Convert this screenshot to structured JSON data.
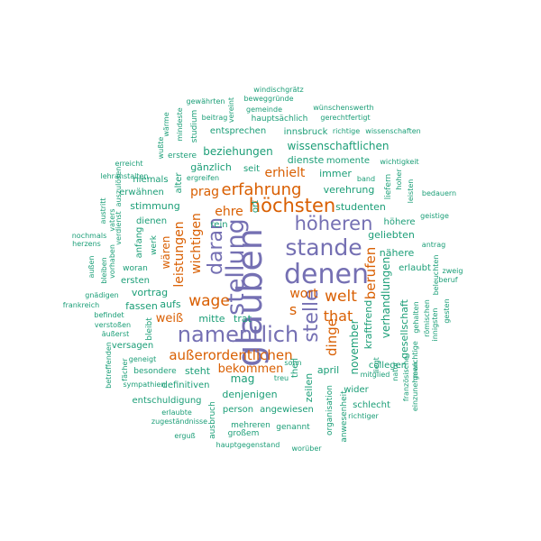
{
  "colors": {
    "purple": "#7570b3",
    "orange": "#d95f02",
    "teal": "#1b9e77"
  },
  "words": [
    {
      "text": "glauben",
      "color": "purple"
    },
    {
      "text": "denen",
      "color": "purple"
    },
    {
      "text": "namentlich",
      "color": "purple"
    },
    {
      "text": "stellung",
      "color": "purple"
    },
    {
      "text": "stande",
      "color": "purple"
    },
    {
      "text": "daran",
      "color": "purple"
    },
    {
      "text": "höheren",
      "color": "purple"
    },
    {
      "text": "stelle",
      "color": "purple"
    },
    {
      "text": "höchsten",
      "color": "orange"
    },
    {
      "text": "erfahrung",
      "color": "orange"
    },
    {
      "text": "welt",
      "color": "orange"
    },
    {
      "text": "wage",
      "color": "orange"
    },
    {
      "text": "that",
      "color": "orange"
    },
    {
      "text": "außerordentlichen",
      "color": "orange"
    },
    {
      "text": "leistungen",
      "color": "orange"
    },
    {
      "text": "wichtigen",
      "color": "orange"
    },
    {
      "text": "berufen",
      "color": "orange"
    },
    {
      "text": "dinge",
      "color": "orange"
    },
    {
      "text": "erhielt",
      "color": "orange"
    },
    {
      "text": "wort",
      "color": "orange"
    },
    {
      "text": "ehre",
      "color": "orange"
    },
    {
      "text": "prag",
      "color": "orange"
    },
    {
      "text": "weiß",
      "color": "orange"
    },
    {
      "text": "wären",
      "color": "orange"
    },
    {
      "text": "bekommen",
      "color": "orange"
    },
    {
      "text": "s",
      "color": "orange"
    },
    {
      "text": "wissenschaftlichen",
      "color": "teal"
    },
    {
      "text": "beziehungen",
      "color": "teal"
    },
    {
      "text": "gänzlich",
      "color": "teal"
    },
    {
      "text": "dienste",
      "color": "teal"
    },
    {
      "text": "momente",
      "color": "teal"
    },
    {
      "text": "immer",
      "color": "teal"
    },
    {
      "text": "verehrung",
      "color": "teal"
    },
    {
      "text": "studenten",
      "color": "teal"
    },
    {
      "text": "geliebten",
      "color": "teal"
    },
    {
      "text": "nähere",
      "color": "teal"
    },
    {
      "text": "höhere",
      "color": "teal"
    },
    {
      "text": "erlaubt",
      "color": "teal"
    },
    {
      "text": "verhandlungen",
      "color": "teal"
    },
    {
      "text": "november",
      "color": "teal"
    },
    {
      "text": "kraftfrend",
      "color": "teal"
    },
    {
      "text": "gesellschaft",
      "color": "teal"
    },
    {
      "text": "stimmung",
      "color": "teal"
    },
    {
      "text": "niemals",
      "color": "teal"
    },
    {
      "text": "erwähnen",
      "color": "teal"
    },
    {
      "text": "dienen",
      "color": "teal"
    },
    {
      "text": "anfang",
      "color": "teal"
    },
    {
      "text": "ersten",
      "color": "teal"
    },
    {
      "text": "vortrag",
      "color": "teal"
    },
    {
      "text": "fassen",
      "color": "teal"
    },
    {
      "text": "aufs",
      "color": "teal"
    },
    {
      "text": "mitte",
      "color": "teal"
    },
    {
      "text": "trat",
      "color": "teal"
    },
    {
      "text": "mag",
      "color": "teal"
    },
    {
      "text": "steht",
      "color": "teal"
    },
    {
      "text": "denjenigen",
      "color": "teal"
    },
    {
      "text": "definitiven",
      "color": "teal"
    },
    {
      "text": "entschuldigung",
      "color": "teal"
    },
    {
      "text": "besondere",
      "color": "teal"
    },
    {
      "text": "versagen",
      "color": "teal"
    },
    {
      "text": "person",
      "color": "teal"
    },
    {
      "text": "angewiesen",
      "color": "teal"
    },
    {
      "text": "april",
      "color": "teal"
    },
    {
      "text": "collegen",
      "color": "teal"
    },
    {
      "text": "wider",
      "color": "teal"
    },
    {
      "text": "schlecht",
      "color": "teal"
    },
    {
      "text": "zeilen",
      "color": "teal"
    },
    {
      "text": "theil",
      "color": "teal"
    },
    {
      "text": "organisation",
      "color": "teal"
    },
    {
      "text": "anwesenheit",
      "color": "teal"
    },
    {
      "text": "mehreren",
      "color": "teal"
    },
    {
      "text": "genannt",
      "color": "teal"
    },
    {
      "text": "großem",
      "color": "teal"
    },
    {
      "text": "hauptgegenstand",
      "color": "teal"
    },
    {
      "text": "worüber",
      "color": "teal"
    },
    {
      "text": "ausbruch",
      "color": "teal"
    },
    {
      "text": "zugeständnisse",
      "color": "teal"
    },
    {
      "text": "erlaubte",
      "color": "teal"
    },
    {
      "text": "erguß",
      "color": "teal"
    },
    {
      "text": "sympathien",
      "color": "teal"
    },
    {
      "text": "betreffenden",
      "color": "teal"
    },
    {
      "text": "geneigt",
      "color": "teal"
    },
    {
      "text": "äußerst",
      "color": "teal"
    },
    {
      "text": "verstoßen",
      "color": "teal"
    },
    {
      "text": "befindet",
      "color": "teal"
    },
    {
      "text": "gnädigen",
      "color": "teal"
    },
    {
      "text": "frankreich",
      "color": "teal"
    },
    {
      "text": "außen",
      "color": "teal"
    },
    {
      "text": "bleiben",
      "color": "teal"
    },
    {
      "text": "herzens",
      "color": "teal"
    },
    {
      "text": "nochmals",
      "color": "teal"
    },
    {
      "text": "lehranstalten",
      "color": "teal"
    },
    {
      "text": "erreicht",
      "color": "teal"
    },
    {
      "text": "wärme",
      "color": "teal"
    },
    {
      "text": "mindeste",
      "color": "teal"
    },
    {
      "text": "wußte",
      "color": "teal"
    },
    {
      "text": "erstere",
      "color": "teal"
    },
    {
      "text": "studium",
      "color": "teal"
    },
    {
      "text": "beitrag",
      "color": "teal"
    },
    {
      "text": "gewährten",
      "color": "teal"
    },
    {
      "text": "vereint",
      "color": "teal"
    },
    {
      "text": "windischgrätz",
      "color": "teal"
    },
    {
      "text": "beweggründe",
      "color": "teal"
    },
    {
      "text": "gemeinde",
      "color": "teal"
    },
    {
      "text": "wünschenswerth",
      "color": "teal"
    },
    {
      "text": "hauptsächlich",
      "color": "teal"
    },
    {
      "text": "gerechtfertigt",
      "color": "teal"
    },
    {
      "text": "entsprechen",
      "color": "teal"
    },
    {
      "text": "innsbruck",
      "color": "teal"
    },
    {
      "text": "richtige",
      "color": "teal"
    },
    {
      "text": "wissenschaften",
      "color": "teal"
    },
    {
      "text": "wichtigkeit",
      "color": "teal"
    },
    {
      "text": "band",
      "color": "teal"
    },
    {
      "text": "hoher",
      "color": "teal"
    },
    {
      "text": "liefern",
      "color": "teal"
    },
    {
      "text": "leisten",
      "color": "teal"
    },
    {
      "text": "bedauern",
      "color": "teal"
    },
    {
      "text": "geistige",
      "color": "teal"
    },
    {
      "text": "antrag",
      "color": "teal"
    },
    {
      "text": "zweig",
      "color": "teal"
    },
    {
      "text": "beleuchten",
      "color": "teal"
    },
    {
      "text": "beruf",
      "color": "teal"
    },
    {
      "text": "gesten",
      "color": "teal"
    },
    {
      "text": "innigsten",
      "color": "teal"
    },
    {
      "text": "römischen",
      "color": "teal"
    },
    {
      "text": "gehalten",
      "color": "teal"
    },
    {
      "text": "natur",
      "color": "teal"
    },
    {
      "text": "französische",
      "color": "teal"
    },
    {
      "text": "einzunehmen",
      "color": "teal"
    },
    {
      "text": "gewichtige",
      "color": "teal"
    },
    {
      "text": "richtiger",
      "color": "teal"
    },
    {
      "text": "mitglied",
      "color": "teal"
    },
    {
      "text": "liegt",
      "color": "teal"
    },
    {
      "text": "treu",
      "color": "teal"
    },
    {
      "text": "sohn",
      "color": "teal"
    },
    {
      "text": "seit",
      "color": "teal"
    },
    {
      "text": "rein",
      "color": "teal"
    },
    {
      "text": "ort",
      "color": "teal"
    },
    {
      "text": "alter",
      "color": "teal"
    },
    {
      "text": "ergreifen",
      "color": "teal"
    },
    {
      "text": "auszulösen",
      "color": "teal"
    },
    {
      "text": "austritt",
      "color": "teal"
    },
    {
      "text": "vaters",
      "color": "teal"
    },
    {
      "text": "verdienst",
      "color": "teal"
    },
    {
      "text": "vorhaben",
      "color": "teal"
    },
    {
      "text": "woran",
      "color": "teal"
    },
    {
      "text": "werk",
      "color": "teal"
    },
    {
      "text": "bleibt",
      "color": "teal"
    },
    {
      "text": "fächer",
      "color": "teal"
    }
  ]
}
